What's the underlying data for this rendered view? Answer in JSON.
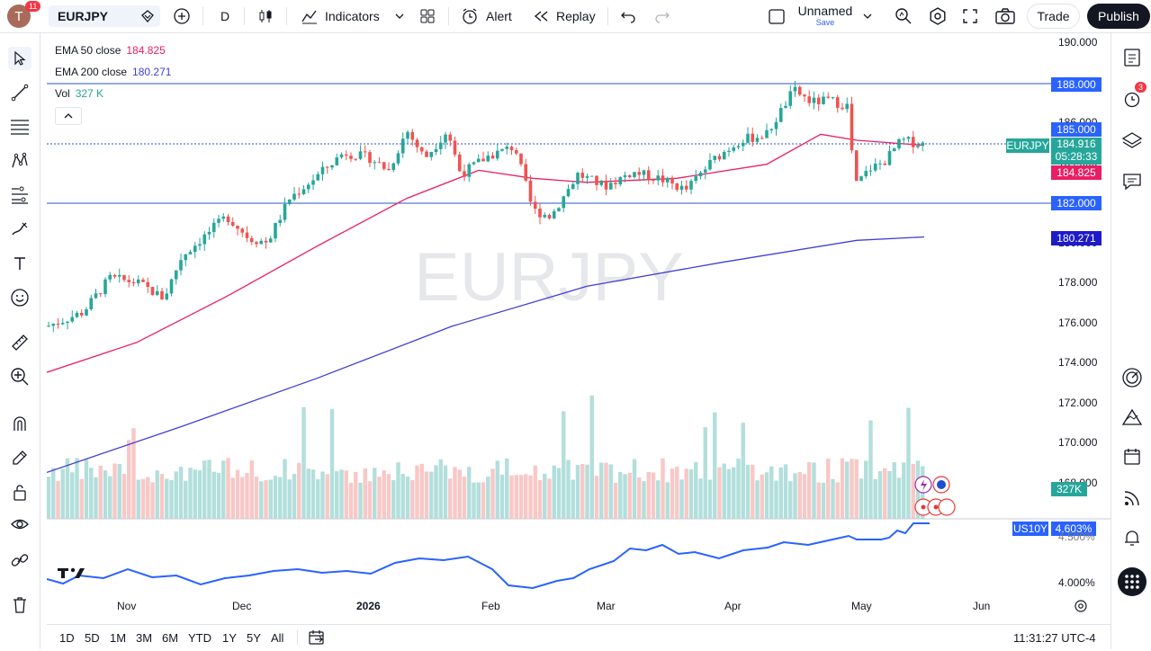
{
  "header": {
    "avatar_letter": "T",
    "notif_count": "11",
    "symbol": "EURJPY",
    "interval": "D",
    "indicators_label": "Indicators",
    "alert_label": "Alert",
    "replay_label": "Replay",
    "layout_name": "Unnamed",
    "save_label": "Save",
    "trade_label": "Trade",
    "publish_label": "Publish"
  },
  "legend": {
    "ema50_label": "EMA 50 close",
    "ema50_value": "184.825",
    "ema200_label": "EMA 200 close",
    "ema200_value": "180.271",
    "vol_label": "Vol",
    "vol_value": "327 K"
  },
  "watermark": "EURJPY",
  "price_axis": [
    "190.000",
    "188.000",
    "186.000",
    "184.000",
    "182.000",
    "180.000",
    "178.000",
    "176.000",
    "174.000",
    "172.000",
    "170.000",
    "168.000"
  ],
  "price_labels": {
    "resistance": "188.000",
    "level_185": "185.000",
    "symbol_tag": "EURJPY",
    "last_price": "184.916",
    "countdown": "05:28:33",
    "ema50": "184.825",
    "support": "182.000",
    "ema200": "180.271",
    "volume": "327K"
  },
  "sub_pane": {
    "symbol": "US10Y",
    "value": "4.603%",
    "axis": [
      "4.500%",
      "4.000%"
    ]
  },
  "x_axis": [
    "Nov",
    "Dec",
    "2026",
    "Feb",
    "Mar",
    "Apr",
    "May",
    "Jun"
  ],
  "ranges": [
    "1D",
    "5D",
    "1M",
    "3M",
    "6M",
    "YTD",
    "1Y",
    "5Y",
    "All"
  ],
  "clock": "11:31:27 UTC-4",
  "right_badge": "3",
  "colors": {
    "up": "#26a69a",
    "down": "#ef5350",
    "ema50": "#e91e63",
    "ema200": "#3f3fd6",
    "hline": "#2962ff",
    "us10y": "#2962ff"
  }
}
